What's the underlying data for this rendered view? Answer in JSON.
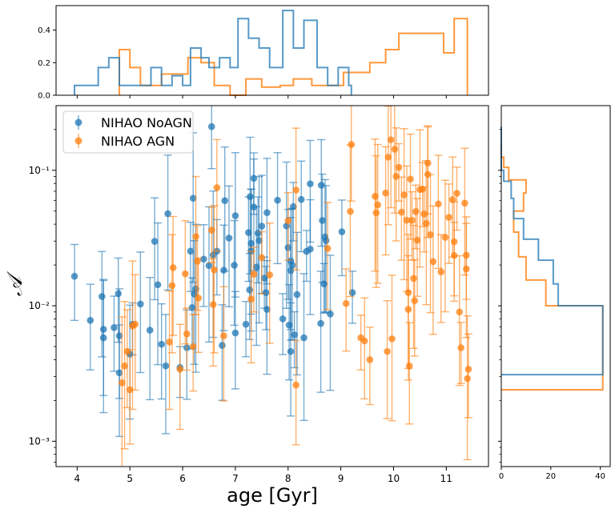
{
  "chart_data": {
    "type": "scatter",
    "xlabel": "age [Gyr]",
    "ylabel": "𝒜",
    "xlim": [
      3.6,
      11.8
    ],
    "ylim_log": [
      0.00065,
      0.3
    ],
    "yscale": "log",
    "x_ticks": [
      4,
      5,
      6,
      7,
      8,
      9,
      10,
      11
    ],
    "y_ticks": [
      {
        "value": 0.001,
        "label": "10⁻³"
      },
      {
        "value": 0.01,
        "label": "10⁻²"
      },
      {
        "value": 0.1,
        "label": "10⁻¹"
      }
    ],
    "legend_position": "top-left",
    "colors": {
      "noagn": "#1f77b4",
      "agn": "#ff7f0e"
    },
    "series": [
      {
        "name": "NIHAO NoAGN",
        "key": "noagn",
        "points": [
          [
            3.95,
            0.0165
          ],
          [
            4.25,
            0.0078
          ],
          [
            4.47,
            0.0117
          ],
          [
            4.5,
            0.0067
          ],
          [
            4.5,
            0.0058
          ],
          [
            4.7,
            0.0069
          ],
          [
            4.78,
            0.0123
          ],
          [
            4.8,
            0.0032
          ],
          [
            4.8,
            0.006
          ],
          [
            5.0,
            0.0044
          ],
          [
            5.05,
            0.0073
          ],
          [
            5.2,
            0.0103
          ],
          [
            5.38,
            0.0066
          ],
          [
            5.47,
            0.0299
          ],
          [
            5.53,
            0.0143
          ],
          [
            5.6,
            0.0052
          ],
          [
            5.68,
            0.0036
          ],
          [
            5.72,
            0.0478
          ],
          [
            5.95,
            0.0035
          ],
          [
            6.08,
            0.0049
          ],
          [
            6.15,
            0.0253
          ],
          [
            6.18,
            0.0097
          ],
          [
            6.2,
            0.0622
          ],
          [
            6.22,
            0.0122
          ],
          [
            6.25,
            0.0133
          ],
          [
            6.4,
            0.0221
          ],
          [
            6.5,
            0.0198
          ],
          [
            6.55,
            0.21
          ],
          [
            6.58,
            0.0237
          ],
          [
            6.65,
            0.0253
          ],
          [
            6.75,
            0.0051
          ],
          [
            6.78,
            0.0183
          ],
          [
            6.8,
            0.0597
          ],
          [
            6.88,
            0.0316
          ],
          [
            6.98,
            0.0199
          ],
          [
            7.0,
            0.0462
          ],
          [
            7.0,
            0.0063
          ],
          [
            7.2,
            0.0073
          ],
          [
            7.25,
            0.0347
          ],
          [
            7.27,
            0.0131
          ],
          [
            7.28,
            0.0639
          ],
          [
            7.3,
            0.0254
          ],
          [
            7.3,
            0.0289
          ],
          [
            7.35,
            0.0872
          ],
          [
            7.35,
            0.0536
          ],
          [
            7.4,
            0.0193
          ],
          [
            7.43,
            0.0343
          ],
          [
            7.45,
            0.0303
          ],
          [
            7.5,
            0.0387
          ],
          [
            7.55,
            0.016
          ],
          [
            7.58,
            0.0125
          ],
          [
            7.6,
            0.0094
          ],
          [
            7.6,
            0.0487
          ],
          [
            7.8,
            0.0601
          ],
          [
            7.9,
            0.008
          ],
          [
            7.97,
            0.0388
          ],
          [
            8.0,
            0.0269
          ],
          [
            8.02,
            0.0072
          ],
          [
            8.05,
            0.0182
          ],
          [
            8.05,
            0.0214
          ],
          [
            8.05,
            0.0046
          ],
          [
            8.08,
            0.0199
          ],
          [
            8.1,
            0.0539
          ],
          [
            8.12,
            0.0061
          ],
          [
            8.17,
            0.0121
          ],
          [
            8.25,
            0.0609
          ],
          [
            8.3,
            0.0058
          ],
          [
            8.35,
            0.0252
          ],
          [
            8.42,
            0.0262
          ],
          [
            8.42,
            0.0795
          ],
          [
            8.62,
            0.0074
          ],
          [
            8.63,
            0.0776
          ],
          [
            8.65,
            0.0426
          ],
          [
            8.68,
            0.0145
          ],
          [
            8.7,
            0.0322
          ],
          [
            8.72,
            0.0303
          ],
          [
            8.8,
            0.0087
          ],
          [
            9.02,
            0.0352
          ],
          [
            9.22,
            0.0125
          ]
        ]
      },
      {
        "name": "NIHAO AGN",
        "key": "agn",
        "points": [
          [
            4.85,
            0.0027
          ],
          [
            4.9,
            0.0036
          ],
          [
            4.95,
            0.0046
          ],
          [
            5.0,
            0.0024
          ],
          [
            5.05,
            0.0071
          ],
          [
            5.1,
            0.0073
          ],
          [
            5.75,
            0.0054
          ],
          [
            5.8,
            0.0141
          ],
          [
            5.82,
            0.0191
          ],
          [
            5.95,
            0.0034
          ],
          [
            6.05,
            0.0172
          ],
          [
            6.08,
            0.0062
          ],
          [
            6.2,
            0.005
          ],
          [
            6.25,
            0.0324
          ],
          [
            6.28,
            0.0213
          ],
          [
            6.3,
            0.0114
          ],
          [
            6.55,
            0.0362
          ],
          [
            6.58,
            0.0102
          ],
          [
            6.6,
            0.0184
          ],
          [
            6.65,
            0.0745
          ],
          [
            6.78,
            0.006
          ],
          [
            7.3,
            0.0112
          ],
          [
            7.35,
            0.0171
          ],
          [
            7.5,
            0.0227
          ],
          [
            7.65,
            0.0169
          ],
          [
            8.0,
            0.0424
          ],
          [
            8.15,
            0.0026
          ],
          [
            8.15,
            0.0715
          ],
          [
            8.75,
            0.0265
          ],
          [
            9.1,
            0.0104
          ],
          [
            9.18,
            0.0497
          ],
          [
            9.2,
            0.155
          ],
          [
            9.38,
            0.0058
          ],
          [
            9.45,
            0.0055
          ],
          [
            9.55,
            0.004
          ],
          [
            9.65,
            0.0642
          ],
          [
            9.67,
            0.0485
          ],
          [
            9.7,
            0.0555
          ],
          [
            9.85,
            0.0679
          ],
          [
            9.88,
            0.0046
          ],
          [
            9.9,
            0.125
          ],
          [
            9.95,
            0.168
          ],
          [
            9.97,
            0.0057
          ],
          [
            10.02,
            0.143
          ],
          [
            10.05,
            0.0901
          ],
          [
            10.1,
            0.105
          ],
          [
            10.15,
            0.0491
          ],
          [
            10.2,
            0.0659
          ],
          [
            10.25,
            0.0428
          ],
          [
            10.28,
            0.0125
          ],
          [
            10.28,
            0.0094
          ],
          [
            10.3,
            0.0036
          ],
          [
            10.32,
            0.0862
          ],
          [
            10.35,
            0.0427
          ],
          [
            10.38,
            0.0159
          ],
          [
            10.4,
            0.0109
          ],
          [
            10.42,
            0.0496
          ],
          [
            10.45,
            0.0305
          ],
          [
            10.5,
            0.0721
          ],
          [
            10.55,
            0.0726
          ],
          [
            10.58,
            0.0476
          ],
          [
            10.62,
            0.0405
          ],
          [
            10.65,
            0.0933
          ],
          [
            10.65,
            0.113
          ],
          [
            10.7,
            0.0335
          ],
          [
            10.75,
            0.0212
          ],
          [
            10.85,
            0.0565
          ],
          [
            10.9,
            0.0178
          ],
          [
            10.98,
            0.032
          ],
          [
            11.05,
            0.0449
          ],
          [
            11.12,
            0.0607
          ],
          [
            11.15,
            0.0297
          ],
          [
            11.15,
            0.0235
          ],
          [
            11.2,
            0.0676
          ],
          [
            11.25,
            0.009
          ],
          [
            11.28,
            0.0049
          ],
          [
            11.35,
            0.0572
          ],
          [
            11.38,
            0.0236
          ],
          [
            11.38,
            0.0187
          ],
          [
            11.4,
            0.0029
          ],
          [
            11.42,
            0.0034
          ]
        ]
      }
    ],
    "top_histogram": {
      "ylim": [
        0,
        0.55
      ],
      "y_ticks": [
        0.0,
        0.2,
        0.4
      ],
      "noagn_edges": [
        3.95,
        4.15,
        4.4,
        4.6,
        4.8,
        5.0,
        5.2,
        5.4,
        5.6,
        5.8,
        6.0,
        6.15,
        6.35,
        6.5,
        6.7,
        6.9,
        7.05,
        7.25,
        7.45,
        7.65,
        7.9,
        8.1,
        8.3,
        8.55,
        8.75,
        8.95,
        9.15,
        9.2
      ],
      "noagn_values": [
        0.06,
        0.06,
        0.17,
        0.23,
        0.06,
        0.06,
        0.06,
        0.17,
        0.06,
        0.12,
        0.06,
        0.29,
        0.23,
        0.17,
        0.23,
        0.17,
        0.47,
        0.35,
        0.29,
        0.17,
        0.52,
        0.29,
        0.46,
        0.17,
        0.06,
        0.17,
        0.06
      ],
      "agn_edges": [
        4.8,
        5.0,
        5.2,
        5.35,
        5.6,
        5.85,
        6.1,
        6.35,
        6.6,
        6.9,
        7.2,
        7.5,
        7.85,
        8.1,
        8.45,
        8.8,
        9.05,
        9.55,
        9.85,
        10.1,
        10.45,
        10.6,
        10.95,
        11.15,
        11.4
      ],
      "agn_values": [
        0.28,
        0.17,
        0.06,
        0.06,
        0.13,
        0.13,
        0.23,
        0.2,
        0.06,
        0.0,
        0.1,
        0.05,
        0.06,
        0.1,
        0.06,
        0.06,
        0.14,
        0.2,
        0.28,
        0.38,
        0.38,
        0.38,
        0.26,
        0.47
      ]
    },
    "right_histogram": {
      "xlim": [
        0,
        44
      ],
      "x_ticks": [
        0,
        20,
        40
      ],
      "noagn_edges": [
        0.0031,
        0.01,
        0.0145,
        0.0217,
        0.031,
        0.044,
        0.062,
        0.083,
        0.1,
        0.21
      ],
      "noagn_values": [
        41,
        23,
        21,
        15,
        9,
        5,
        4,
        1,
        0
      ],
      "agn_edges": [
        0.0024,
        0.01,
        0.0155,
        0.023,
        0.035,
        0.05,
        0.068,
        0.085,
        0.105,
        0.125,
        0.16
      ],
      "agn_values": [
        41,
        18,
        10,
        7,
        5,
        9,
        10,
        3,
        1,
        0
      ]
    }
  }
}
